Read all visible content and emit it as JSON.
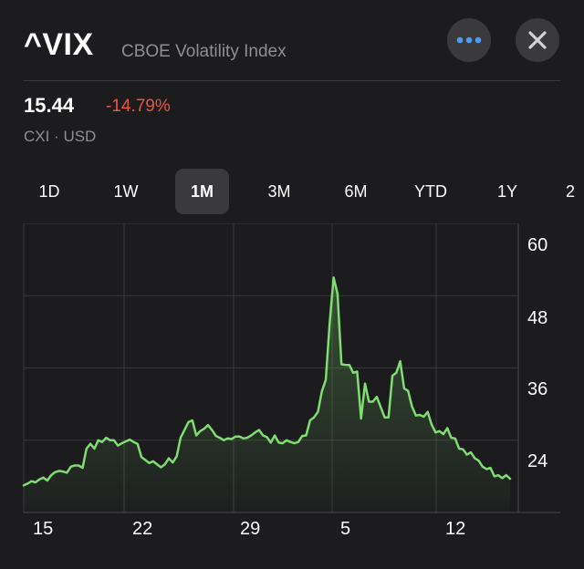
{
  "header": {
    "symbol": "^VIX",
    "name": "CBOE Volatility Index",
    "more_icon": "ellipsis-icon",
    "close_icon": "close-icon"
  },
  "quote": {
    "price": "15.44",
    "change": "-14.79%",
    "exchange": "CXI · USD"
  },
  "colors": {
    "background": "#1c1c1e",
    "negative": "#eb5545",
    "line": "#7fdd72",
    "accent": "#4e9bf5"
  },
  "range_tabs": [
    {
      "label": "1D",
      "active": false
    },
    {
      "label": "1W",
      "active": false
    },
    {
      "label": "1M",
      "active": true
    },
    {
      "label": "3M",
      "active": false
    },
    {
      "label": "6M",
      "active": false
    },
    {
      "label": "YTD",
      "active": false
    },
    {
      "label": "1Y",
      "active": false
    },
    {
      "label": "2",
      "active": false
    }
  ],
  "chart_data": {
    "type": "area",
    "x_tick_labels": [
      "15",
      "22",
      "29",
      "5",
      "12"
    ],
    "y_tick_labels": [
      "60",
      "48",
      "36",
      "24"
    ],
    "ylim": [
      12,
      60
    ],
    "grid": true,
    "values": [
      16.5,
      16.8,
      17.2,
      17.0,
      17.5,
      17.8,
      17.3,
      18.2,
      18.7,
      18.9,
      18.8,
      18.6,
      19.6,
      19.8,
      19.8,
      19.4,
      22.6,
      23.4,
      22.6,
      24.0,
      23.7,
      24.4,
      24.0,
      24.0,
      23.1,
      23.5,
      23.8,
      24.1,
      23.7,
      23.4,
      21.2,
      20.7,
      20.2,
      20.5,
      20.0,
      19.5,
      20.0,
      21.0,
      20.3,
      21.3,
      24.4,
      25.7,
      27.0,
      27.3,
      24.8,
      25.5,
      25.9,
      26.5,
      25.7,
      24.7,
      24.4,
      24.0,
      24.3,
      24.2,
      24.6,
      24.6,
      24.3,
      24.4,
      24.8,
      25.3,
      25.7,
      24.8,
      24.5,
      23.6,
      24.8,
      23.6,
      23.5,
      24.0,
      23.7,
      23.5,
      23.7,
      24.7,
      24.8,
      27.3,
      27.8,
      28.7,
      32.1,
      34.0,
      43.5,
      51.0,
      48.3,
      36.6,
      36.5,
      36.5,
      35.2,
      35.4,
      27.6,
      33.4,
      30.4,
      30.4,
      31.2,
      29.5,
      27.8,
      27.8,
      34.7,
      35.2,
      37.1,
      32.6,
      32.2,
      29.6,
      28.1,
      28.2,
      27.9,
      28.7,
      26.6,
      25.3,
      25.5,
      25.0,
      26.0,
      24.4,
      24.3,
      22.6,
      22.5,
      21.6,
      22.0,
      21.0,
      20.6,
      19.6,
      19.2,
      19.4,
      18.0,
      18.2,
      17.7,
      18.2,
      17.6
    ]
  }
}
